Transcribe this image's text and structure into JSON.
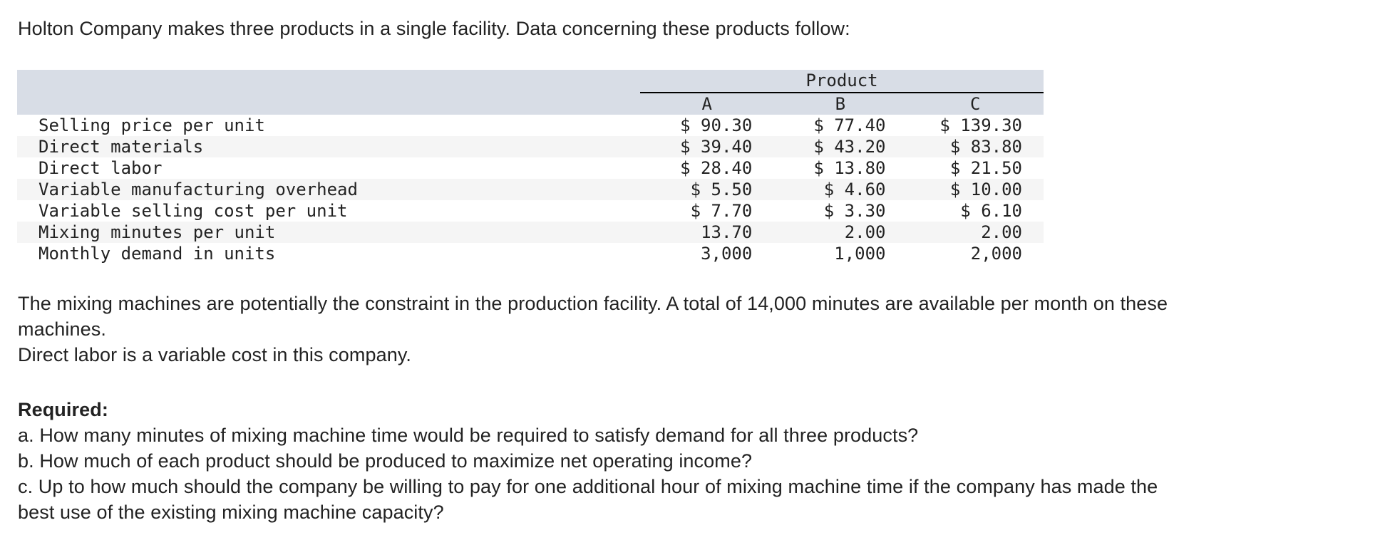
{
  "intro": "Holton Company makes three products in a single facility. Data concerning these products follow:",
  "table": {
    "group_header": "Product",
    "columns": [
      "A",
      "B",
      "C"
    ],
    "rows": [
      {
        "label": "Selling price per unit",
        "values": [
          "$ 90.30",
          "$ 77.40",
          "$ 139.30"
        ]
      },
      {
        "label": "Direct materials",
        "values": [
          "$ 39.40",
          "$ 43.20",
          "$ 83.80"
        ]
      },
      {
        "label": "Direct labor",
        "values": [
          "$ 28.40",
          "$ 13.80",
          "$ 21.50"
        ]
      },
      {
        "label": "Variable manufacturing overhead",
        "values": [
          "$ 5.50",
          "$ 4.60",
          "$ 10.00"
        ]
      },
      {
        "label": "Variable selling cost per unit",
        "values": [
          "$ 7.70",
          "$ 3.30",
          "$ 6.10"
        ]
      },
      {
        "label": "Mixing minutes per unit",
        "values": [
          "13.70",
          "2.00",
          "2.00"
        ]
      },
      {
        "label": "Monthly demand in units",
        "values": [
          "3,000",
          "1,000",
          "2,000"
        ]
      }
    ]
  },
  "paragraph2": {
    "line1": "The mixing machines are potentially the constraint in the production facility. A total of 14,000 minutes are available per month on these",
    "line2": "machines.",
    "line3": "Direct labor is a variable cost in this company."
  },
  "required": {
    "title": "Required:",
    "a": "a. How many minutes of mixing machine time would be required to satisfy demand for all three products?",
    "b": "b. How much of each product should be produced to maximize net operating income?",
    "c_line1": "c. Up to how much should the company be willing to pay for one additional hour of mixing machine time if the company has made the",
    "c_line2": "best use of the existing mixing machine capacity?"
  }
}
